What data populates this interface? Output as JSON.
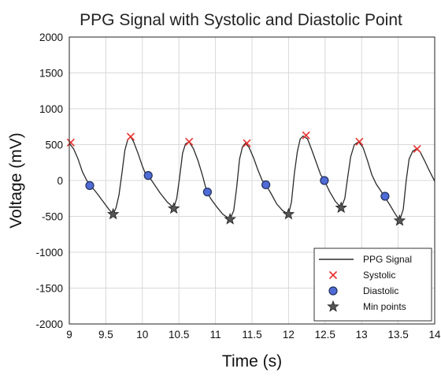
{
  "chart_data": {
    "type": "line",
    "title": "PPG Signal with Systolic and Diastolic Point",
    "xlabel": "Time (s)",
    "ylabel": "Voltage (mV)",
    "xlim": [
      9,
      14
    ],
    "ylim": [
      -2000,
      2000
    ],
    "xticks": [
      "9",
      "9.5",
      "10",
      "10.5",
      "11",
      "11.5",
      "12",
      "12.5",
      "13",
      "13.5",
      "14"
    ],
    "yticks": [
      "2000",
      "1500",
      "1000",
      "500",
      "0",
      "-500",
      "-1000",
      "-1500",
      "-2000"
    ],
    "grid": true,
    "legend_position": "bottom-right",
    "colors": {
      "signal": "#2b2b2b",
      "systolic": "#e8302e",
      "diastolic_fill": "#4f6bd6",
      "diastolic_edge": "#22305c",
      "min": "#555555"
    },
    "series": [
      {
        "name": "PPG Signal",
        "style": "line",
        "points": [
          [
            9.0,
            520
          ],
          [
            9.06,
            440
          ],
          [
            9.12,
            300
          ],
          [
            9.18,
            120
          ],
          [
            9.24,
            0
          ],
          [
            9.3,
            -80
          ],
          [
            9.38,
            -180
          ],
          [
            9.46,
            -290
          ],
          [
            9.54,
            -400
          ],
          [
            9.6,
            -470
          ],
          [
            9.64,
            -380
          ],
          [
            9.68,
            -200
          ],
          [
            9.72,
            100
          ],
          [
            9.76,
            420
          ],
          [
            9.8,
            570
          ],
          [
            9.84,
            610
          ],
          [
            9.88,
            540
          ],
          [
            9.94,
            380
          ],
          [
            10.0,
            200
          ],
          [
            10.04,
            100
          ],
          [
            10.08,
            70
          ],
          [
            10.16,
            -50
          ],
          [
            10.24,
            -170
          ],
          [
            10.34,
            -300
          ],
          [
            10.43,
            -380
          ],
          [
            10.47,
            -250
          ],
          [
            10.51,
            50
          ],
          [
            10.55,
            380
          ],
          [
            10.59,
            510
          ],
          [
            10.64,
            540
          ],
          [
            10.7,
            440
          ],
          [
            10.76,
            280
          ],
          [
            10.82,
            80
          ],
          [
            10.88,
            -150
          ],
          [
            10.94,
            -260
          ],
          [
            11.02,
            -370
          ],
          [
            11.1,
            -470
          ],
          [
            11.2,
            -540
          ],
          [
            11.25,
            -420
          ],
          [
            11.29,
            -100
          ],
          [
            11.33,
            300
          ],
          [
            11.37,
            470
          ],
          [
            11.41,
            520
          ],
          [
            11.46,
            460
          ],
          [
            11.52,
            320
          ],
          [
            11.58,
            150
          ],
          [
            11.64,
            0
          ],
          [
            11.69,
            -60
          ],
          [
            11.76,
            -180
          ],
          [
            11.84,
            -330
          ],
          [
            11.92,
            -420
          ],
          [
            12.0,
            -470
          ],
          [
            12.04,
            -300
          ],
          [
            12.08,
            100
          ],
          [
            12.12,
            400
          ],
          [
            12.16,
            580
          ],
          [
            12.2,
            620
          ],
          [
            12.26,
            580
          ],
          [
            12.32,
            420
          ],
          [
            12.38,
            250
          ],
          [
            12.44,
            80
          ],
          [
            12.49,
            0
          ],
          [
            12.56,
            -150
          ],
          [
            12.64,
            -290
          ],
          [
            12.72,
            -380
          ],
          [
            12.77,
            -250
          ],
          [
            12.81,
            50
          ],
          [
            12.85,
            330
          ],
          [
            12.9,
            500
          ],
          [
            12.96,
            540
          ],
          [
            13.02,
            460
          ],
          [
            13.08,
            280
          ],
          [
            13.14,
            80
          ],
          [
            13.2,
            -50
          ],
          [
            13.26,
            -140
          ],
          [
            13.31,
            -220
          ],
          [
            13.38,
            -330
          ],
          [
            13.45,
            -450
          ],
          [
            13.52,
            -560
          ],
          [
            13.57,
            -400
          ],
          [
            13.61,
            0
          ],
          [
            13.65,
            300
          ],
          [
            13.7,
            410
          ],
          [
            13.75,
            440
          ],
          [
            13.8,
            400
          ],
          [
            13.86,
            280
          ],
          [
            13.92,
            150
          ],
          [
            13.98,
            30
          ],
          [
            14.02,
            -50
          ]
        ]
      },
      {
        "name": "Systolic",
        "style": "x-marker",
        "points": [
          [
            9.02,
            530
          ],
          [
            9.84,
            610
          ],
          [
            10.64,
            540
          ],
          [
            11.43,
            520
          ],
          [
            12.24,
            630
          ],
          [
            12.97,
            540
          ],
          [
            13.76,
            440
          ]
        ]
      },
      {
        "name": "Diastolic",
        "style": "circle-marker",
        "points": [
          [
            9.28,
            -70
          ],
          [
            10.08,
            70
          ],
          [
            10.89,
            -160
          ],
          [
            11.69,
            -60
          ],
          [
            12.49,
            0
          ],
          [
            13.32,
            -220
          ]
        ]
      },
      {
        "name": "Min points",
        "style": "star-marker",
        "points": [
          [
            9.6,
            -470
          ],
          [
            10.43,
            -390
          ],
          [
            11.2,
            -540
          ],
          [
            12.0,
            -470
          ],
          [
            12.72,
            -380
          ],
          [
            13.52,
            -560
          ]
        ]
      }
    ]
  }
}
